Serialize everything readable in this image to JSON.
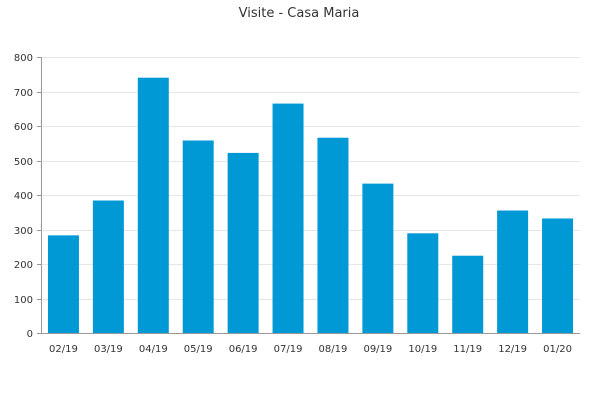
{
  "chart_data": {
    "type": "bar",
    "title": "Visite - Casa Maria",
    "xlabel": "",
    "ylabel": "",
    "categories": [
      "02/19",
      "03/19",
      "04/19",
      "05/19",
      "06/19",
      "07/19",
      "08/19",
      "09/19",
      "10/19",
      "11/19",
      "12/19",
      "01/20"
    ],
    "values": [
      283,
      384,
      740,
      558,
      522,
      665,
      566,
      433,
      289,
      224,
      355,
      332
    ],
    "ylim": [
      0,
      800
    ],
    "yticks": [
      0,
      100,
      200,
      300,
      400,
      500,
      600,
      700,
      800
    ],
    "grid": true,
    "legend": "none",
    "bar_color": "#0099d5"
  }
}
